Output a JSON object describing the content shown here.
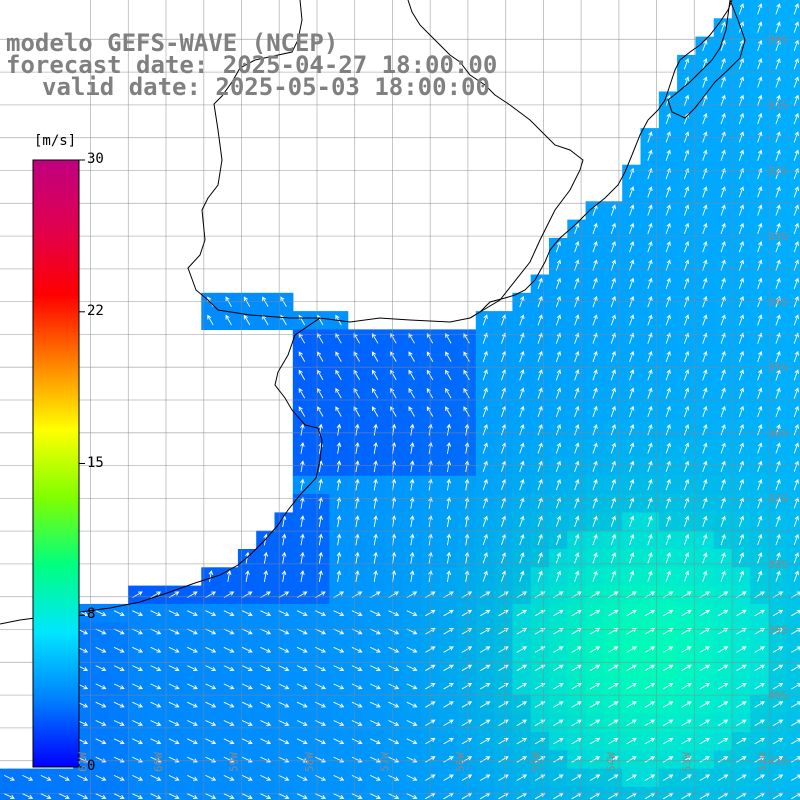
{
  "title": {
    "line1": "modelo GEFS-WAVE (NCEP)",
    "line2": "forecast date: 2025-04-27 18:00:00",
    "line3": "valid date: 2025-05-03 18:00:00"
  },
  "colorbar": {
    "unit": "[m/s]",
    "min": 0,
    "max": 30,
    "ticks": [
      "30",
      "22",
      "15",
      "8",
      "0"
    ],
    "tick_values": [
      30,
      22.5,
      15,
      7.5,
      0
    ],
    "colors": [
      "#0000ff",
      "#0080ff",
      "#00e6ff",
      "#00ff80",
      "#80ff00",
      "#ffff00",
      "#ff8000",
      "#ff0000",
      "#e00050",
      "#c00080"
    ]
  },
  "axes": {
    "lat_labels": [
      "30S",
      "31S",
      "32S",
      "33S",
      "34S",
      "35S",
      "36S",
      "37S",
      "38S",
      "39S",
      "40S",
      "41S"
    ],
    "lon_labels": [
      "61W",
      "60W",
      "59W",
      "58W",
      "57W",
      "56W",
      "55W",
      "54W",
      "53W",
      "52W",
      "51W"
    ],
    "lat_range": [
      -41.6,
      -29.4
    ],
    "lon_range": [
      -62.2,
      -51.6
    ]
  },
  "chart_data": {
    "type": "heatmap",
    "quantity": "wind speed",
    "unit": "m/s",
    "approx_value_range": [
      2,
      10
    ]
  }
}
